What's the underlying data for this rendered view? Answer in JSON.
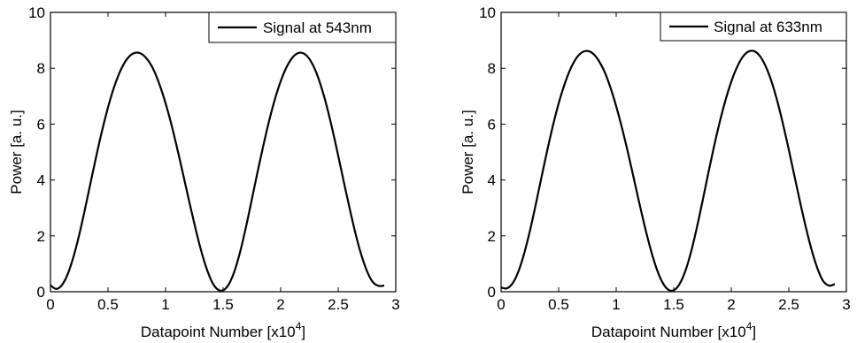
{
  "chart_data": [
    {
      "type": "line",
      "xlabel_main": "Datapoint Number [x10",
      "xlabel_exponent": "4",
      "xlabel_close": "]",
      "ylabel": "Power [a. u.]",
      "xlim": [
        0,
        3
      ],
      "ylim": [
        0,
        10
      ],
      "xticks": [
        0,
        0.5,
        1,
        1.5,
        2,
        2.5,
        3
      ],
      "xtick_labels": [
        "0",
        "0.5",
        "1",
        "1.5",
        "2",
        "2.5",
        "3"
      ],
      "yticks": [
        0,
        2,
        4,
        6,
        8,
        10
      ],
      "ytick_labels": [
        "0",
        "2",
        "4",
        "6",
        "8",
        "10"
      ],
      "grid": false,
      "legend_position": "top-right",
      "series": [
        {
          "name": "Signal at 543nm",
          "color": "#000000",
          "x": [
            0,
            0.05,
            0.1,
            0.15,
            0.2,
            0.25,
            0.3,
            0.35,
            0.4,
            0.45,
            0.5,
            0.55,
            0.6,
            0.65,
            0.7,
            0.75,
            0.8,
            0.85,
            0.9,
            0.95,
            1.0,
            1.05,
            1.1,
            1.15,
            1.2,
            1.25,
            1.3,
            1.35,
            1.4,
            1.45,
            1.5,
            1.55,
            1.6,
            1.65,
            1.7,
            1.75,
            1.8,
            1.85,
            1.9,
            1.95,
            2.0,
            2.05,
            2.1,
            2.15,
            2.2,
            2.25,
            2.3,
            2.35,
            2.4,
            2.45,
            2.5,
            2.55,
            2.6,
            2.65,
            2.7,
            2.75,
            2.8,
            2.85,
            2.9
          ],
          "y": [
            0.23,
            0.1,
            0.24,
            0.63,
            1.25,
            2.04,
            2.96,
            3.93,
            4.89,
            5.79,
            6.6,
            7.29,
            7.84,
            8.24,
            8.48,
            8.56,
            8.49,
            8.27,
            7.91,
            7.39,
            6.75,
            6.0,
            5.15,
            4.25,
            3.33,
            2.44,
            1.61,
            0.91,
            0.38,
            0.09,
            0.05,
            0.27,
            0.75,
            1.46,
            2.34,
            3.31,
            4.3,
            5.24,
            6.12,
            6.89,
            7.53,
            8.03,
            8.37,
            8.54,
            8.53,
            8.33,
            7.94,
            7.37,
            6.65,
            5.8,
            4.87,
            3.91,
            2.97,
            2.09,
            1.33,
            0.74,
            0.35,
            0.21,
            0.22
          ]
        }
      ]
    },
    {
      "type": "line",
      "xlabel_main": "Datapoint Number [x10",
      "xlabel_exponent": "4",
      "xlabel_close": "]",
      "ylabel": "Power [a. u.]",
      "xlim": [
        0,
        3
      ],
      "ylim": [
        0,
        10
      ],
      "xticks": [
        0,
        0.5,
        1,
        1.5,
        2,
        2.5,
        3
      ],
      "xtick_labels": [
        "0",
        "0.5",
        "1",
        "1.5",
        "2",
        "2.5",
        "3"
      ],
      "yticks": [
        0,
        2,
        4,
        6,
        8,
        10
      ],
      "ytick_labels": [
        "0",
        "2",
        "4",
        "6",
        "8",
        "10"
      ],
      "grid": false,
      "legend_position": "top-right",
      "series": [
        {
          "name": "Signal at 633nm",
          "color": "#000000",
          "x": [
            0,
            0.05,
            0.1,
            0.15,
            0.2,
            0.25,
            0.3,
            0.35,
            0.4,
            0.45,
            0.5,
            0.55,
            0.6,
            0.65,
            0.7,
            0.75,
            0.8,
            0.85,
            0.9,
            0.95,
            1.0,
            1.05,
            1.1,
            1.15,
            1.2,
            1.25,
            1.3,
            1.35,
            1.4,
            1.45,
            1.5,
            1.55,
            1.6,
            1.65,
            1.7,
            1.75,
            1.8,
            1.85,
            1.9,
            1.95,
            2.0,
            2.05,
            2.1,
            2.15,
            2.2,
            2.25,
            2.3,
            2.35,
            2.4,
            2.45,
            2.5,
            2.55,
            2.6,
            2.65,
            2.7,
            2.75,
            2.8,
            2.85,
            2.9
          ],
          "y": [
            0.15,
            0.12,
            0.3,
            0.72,
            1.36,
            2.17,
            3.1,
            4.08,
            5.04,
            5.94,
            6.74,
            7.41,
            7.95,
            8.34,
            8.56,
            8.62,
            8.52,
            8.26,
            7.86,
            7.31,
            6.64,
            5.87,
            5.02,
            4.11,
            3.19,
            2.31,
            1.51,
            0.84,
            0.35,
            0.08,
            0.05,
            0.27,
            0.73,
            1.42,
            2.28,
            3.24,
            4.24,
            5.2,
            6.08,
            6.86,
            7.52,
            8.04,
            8.41,
            8.6,
            8.61,
            8.43,
            8.06,
            7.52,
            6.82,
            5.99,
            5.08,
            4.12,
            3.17,
            2.27,
            1.47,
            0.82,
            0.37,
            0.22,
            0.27
          ]
        }
      ]
    }
  ]
}
